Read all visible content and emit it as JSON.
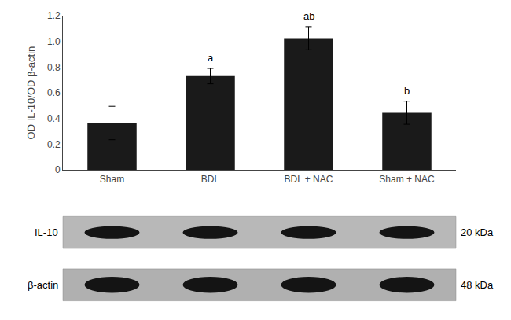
{
  "chart_data": {
    "type": "bar",
    "categories": [
      "Sham",
      "BDL",
      "BDL + NAC",
      "Sham + NAC"
    ],
    "values": [
      0.365,
      0.73,
      1.025,
      0.445
    ],
    "errors": [
      0.13,
      0.06,
      0.09,
      0.09
    ],
    "color": "#1a1a1a",
    "ylabel": "OD IL-10/OD β-actin",
    "ylim": [
      0,
      1.2
    ],
    "yticks": [
      0,
      0.2,
      0.4,
      0.6,
      0.8,
      {
        "value": 1.0,
        "label": "1.0"
      },
      1.2
    ],
    "grid": false,
    "annotations": [
      {
        "x": 1,
        "text": "a"
      },
      {
        "x": 2,
        "text": "ab"
      },
      {
        "x": 3,
        "text": "b"
      },
      {
        "text": "IL-10"
      },
      {
        "text": "20 kDa"
      },
      {
        "text": "β-actin"
      },
      {
        "text": "48 kDa"
      }
    ]
  }
}
